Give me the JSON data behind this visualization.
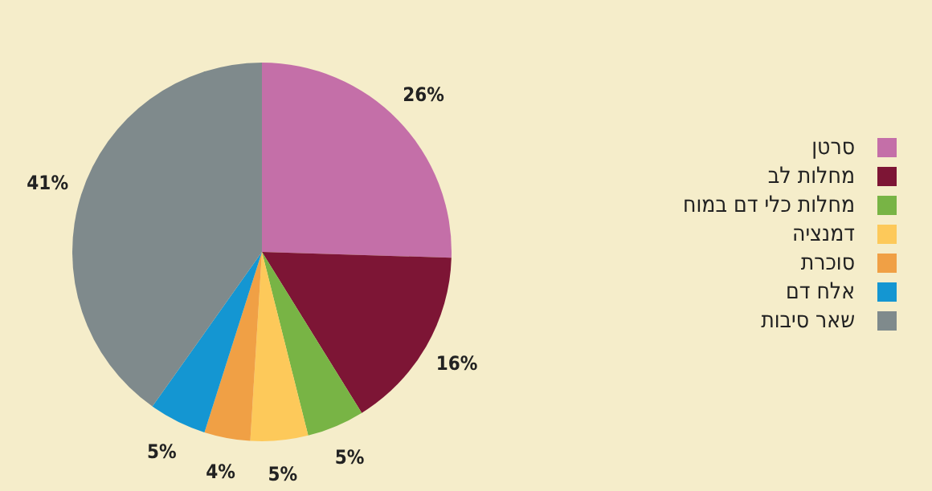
{
  "chart_data": {
    "type": "pie",
    "categories": [
      "סרטן",
      "מחלות לב",
      "מחלות כלי דם במוח",
      "דמנציה",
      "סוכרת",
      "אלח דם",
      "שאר סיבות"
    ],
    "values": [
      26,
      16,
      5,
      5,
      4,
      5,
      41
    ],
    "value_labels": [
      "26%",
      "16%",
      "5%",
      "5%",
      "4%",
      "5%",
      "41%"
    ],
    "colors": [
      "#c46fa8",
      "#7d1535",
      "#78b445",
      "#fdc95a",
      "#f0a045",
      "#1496d2",
      "#7f8a8c"
    ],
    "legend": "right"
  }
}
